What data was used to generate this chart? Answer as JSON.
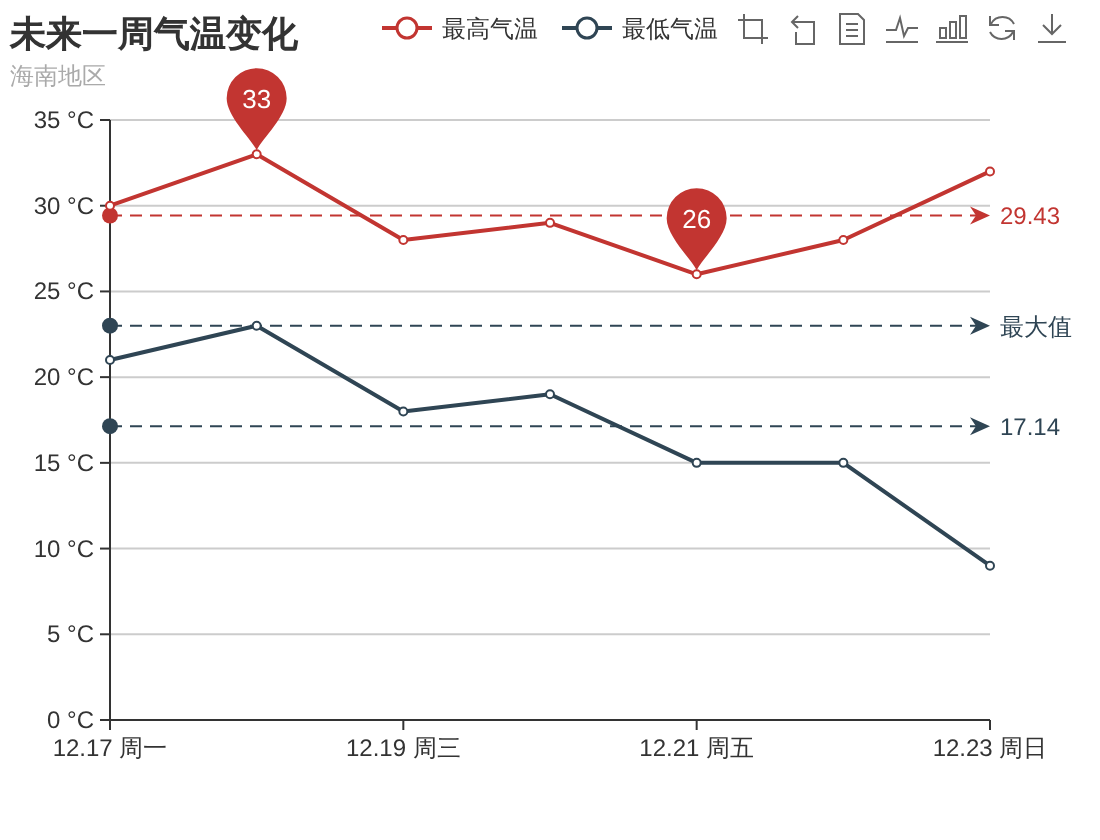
{
  "chart_data": {
    "type": "line",
    "title": "未来一周气温变化",
    "subtitle": "海南地区",
    "categories": [
      "12.17 周一",
      null,
      "12.19 周三",
      null,
      "12.21 周五",
      null,
      "12.23 周日"
    ],
    "series": [
      {
        "name": "最高气温",
        "color": "#c23531",
        "values": [
          30,
          33,
          28,
          29,
          26,
          28,
          32
        ]
      },
      {
        "name": "最低气温",
        "color": "#2f4554",
        "values": [
          21,
          23,
          18,
          19,
          15,
          15,
          9
        ]
      }
    ],
    "ylim": [
      0,
      35
    ],
    "yticks": [
      {
        "value": 0,
        "label": "0 °C"
      },
      {
        "value": 5,
        "label": "5 °C"
      },
      {
        "value": 10,
        "label": "10 °C"
      },
      {
        "value": 15,
        "label": "15 °C"
      },
      {
        "value": 20,
        "label": "20 °C"
      },
      {
        "value": 25,
        "label": "25 °C"
      },
      {
        "value": 30,
        "label": "30 °C"
      },
      {
        "value": 35,
        "label": "35 °C"
      }
    ],
    "grid": "y",
    "legend": "top",
    "marker": "circle",
    "ref_lines": [
      {
        "axis": "y",
        "value": 29.43,
        "label": "29.43",
        "color": "#c23531",
        "line_style": "dashed"
      },
      {
        "axis": "y",
        "value": 17.14,
        "label": "17.14",
        "color": "#2f4554",
        "line_style": "dashed"
      },
      {
        "axis": "y",
        "value": 23,
        "label": "最大值",
        "color": "#2f4554",
        "line_style": "dashed"
      }
    ],
    "annotations": [
      {
        "text": "33",
        "y": 33
      },
      {
        "text": "26",
        "x": "12.21 周五",
        "y": 26
      }
    ]
  }
}
